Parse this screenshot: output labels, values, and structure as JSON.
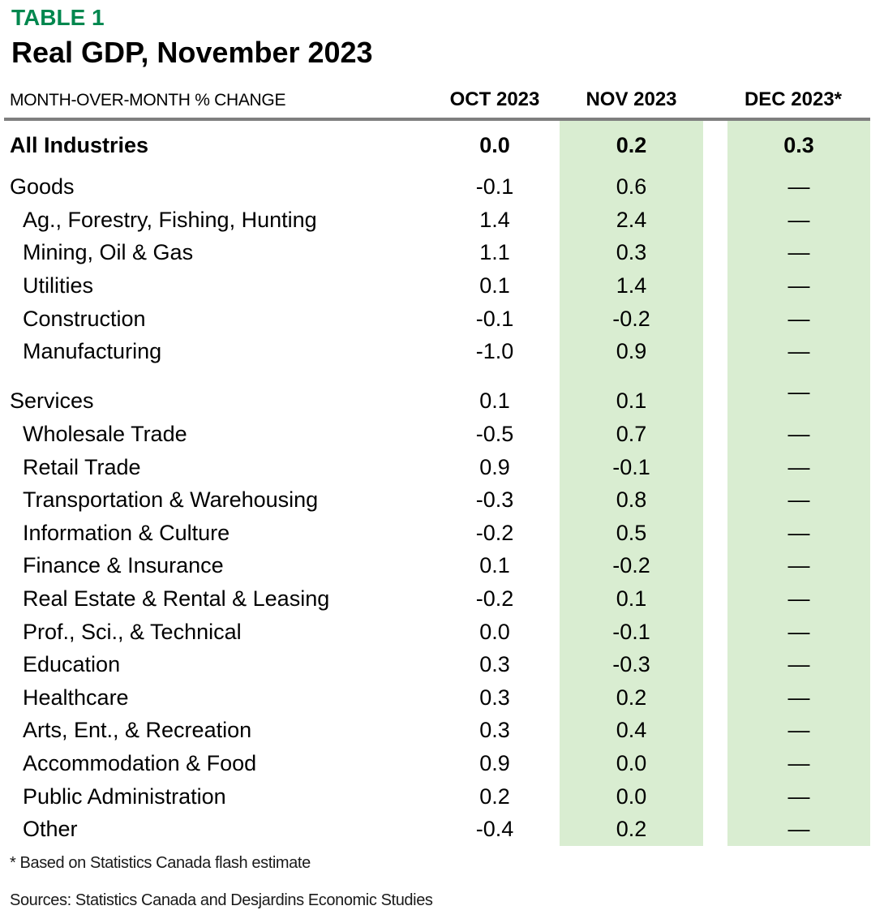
{
  "table": {
    "tag": "TABLE 1",
    "title": "Real GDP, November 2023",
    "unit_label": "MONTH-OVER-MONTH % CHANGE",
    "columns": [
      "OCT 2023",
      "NOV 2023",
      "DEC 2023*"
    ],
    "rows": [
      {
        "label": "All Industries",
        "indent": 0,
        "bold": true,
        "values": [
          "0.0",
          "0.2",
          "0.3"
        ]
      },
      {
        "label": "Goods",
        "indent": 0,
        "values": [
          "-0.1",
          "0.6",
          "—"
        ]
      },
      {
        "label": "Ag., Forestry, Fishing, Hunting",
        "indent": 1,
        "values": [
          "1.4",
          "2.4",
          "—"
        ]
      },
      {
        "label": "Mining, Oil & Gas",
        "indent": 1,
        "values": [
          "1.1",
          "0.3",
          "—"
        ]
      },
      {
        "label": "Utilities",
        "indent": 1,
        "values": [
          "0.1",
          "1.4",
          "—"
        ]
      },
      {
        "label": "Construction",
        "indent": 1,
        "values": [
          "-0.1",
          "-0.2",
          "—"
        ]
      },
      {
        "label": "Manufacturing",
        "indent": 1,
        "values": [
          "-1.0",
          "0.9",
          "—"
        ]
      },
      {
        "label": "Services",
        "indent": 0,
        "spacer_before": true,
        "dec_raised": true,
        "values": [
          "0.1",
          "0.1",
          "—"
        ]
      },
      {
        "label": "Wholesale Trade",
        "indent": 1,
        "values": [
          "-0.5",
          "0.7",
          "—"
        ]
      },
      {
        "label": "Retail Trade",
        "indent": 1,
        "values": [
          "0.9",
          "-0.1",
          "—"
        ]
      },
      {
        "label": "Transportation & Warehousing",
        "indent": 1,
        "values": [
          "-0.3",
          "0.8",
          "—"
        ]
      },
      {
        "label": "Information & Culture",
        "indent": 1,
        "values": [
          "-0.2",
          "0.5",
          "—"
        ]
      },
      {
        "label": "Finance & Insurance",
        "indent": 1,
        "values": [
          "0.1",
          "-0.2",
          "—"
        ]
      },
      {
        "label": "Real Estate & Rental & Leasing",
        "indent": 1,
        "values": [
          "-0.2",
          "0.1",
          "—"
        ]
      },
      {
        "label": "Prof., Sci., & Technical",
        "indent": 1,
        "values": [
          "0.0",
          "-0.1",
          "—"
        ]
      },
      {
        "label": "Education",
        "indent": 1,
        "values": [
          "0.3",
          "-0.3",
          "—"
        ]
      },
      {
        "label": "Healthcare",
        "indent": 1,
        "values": [
          "0.3",
          "0.2",
          "—"
        ]
      },
      {
        "label": "Arts, Ent., & Recreation",
        "indent": 1,
        "values": [
          "0.3",
          "0.4",
          "—"
        ]
      },
      {
        "label": "Accommodation & Food",
        "indent": 1,
        "values": [
          "0.9",
          "0.0",
          "—"
        ]
      },
      {
        "label": "Public Administration",
        "indent": 1,
        "values": [
          "0.2",
          "0.0",
          "—"
        ]
      },
      {
        "label": "Other",
        "indent": 1,
        "values": [
          "-0.4",
          "0.2",
          "—"
        ]
      }
    ],
    "footnote": "* Based on Statistics Canada flash estimate",
    "sources": "Sources: Statistics Canada and Desjardins Economic Studies"
  },
  "colors": {
    "accent_green": "#00874e",
    "band_green": "#d9edd1",
    "rule_gray": "#7f7f7f",
    "text": "#000000"
  }
}
